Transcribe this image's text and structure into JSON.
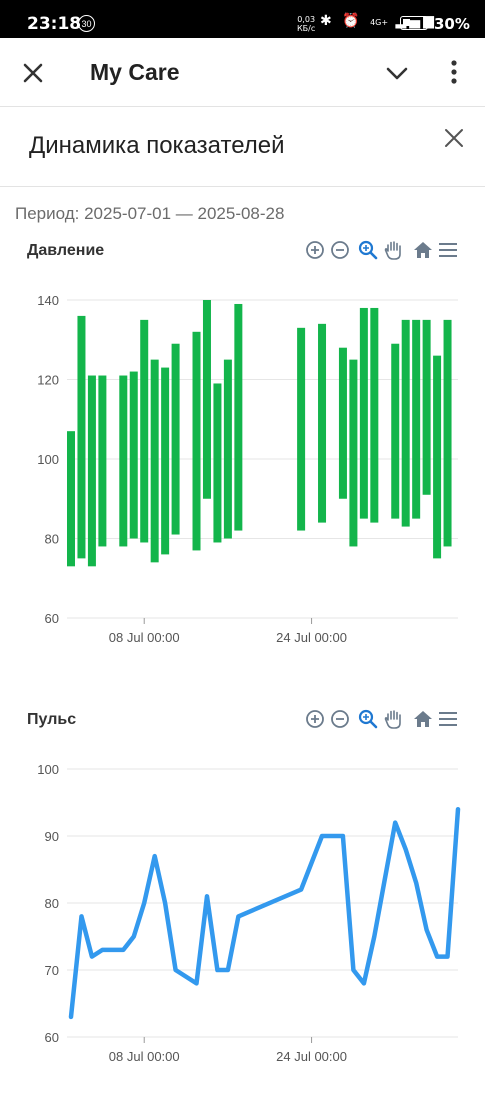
{
  "status_bar": {
    "time": "23:18",
    "badge": "30",
    "net_speed_value": "0,03",
    "net_speed_unit": "КБ/с",
    "network": "4G+",
    "battery": "30%"
  },
  "header": {
    "title": "My Care"
  },
  "section": {
    "title": "Динамика показателей"
  },
  "period": {
    "label": "Период:",
    "range": "2025-07-01 — 2025-08-28"
  },
  "colors": {
    "pressure_bar": "#13b54b",
    "pulse_line": "#3399ee",
    "toolbar_icon": "#6b7b8c",
    "zoom_active": "#1f78d1",
    "grid": "#e6e6e6"
  },
  "toolbar_icons": [
    "zoom-in-icon",
    "zoom-out-icon",
    "selection-zoom-icon",
    "pan-hand-icon",
    "reset-home-icon",
    "menu-icon"
  ],
  "charts": {
    "pressure": {
      "title": "Давление"
    },
    "pulse": {
      "title": "Пульс"
    }
  },
  "chart_data": [
    {
      "type": "bar",
      "subtype": "range",
      "title": "Давление",
      "xaxis_type": "datetime",
      "xlabel": "",
      "ylabel": "",
      "ylim": [
        60,
        140
      ],
      "yticks": [
        60,
        80,
        100,
        120,
        140
      ],
      "xticks": [
        {
          "value": "2025-07-08 00:00",
          "label": "08 Jul 00:00"
        },
        {
          "value": "2025-07-24 00:00",
          "label": "24 Jul 00:00"
        }
      ],
      "grid": true,
      "series": [
        {
          "x": [
            "2025-07-01",
            "2025-07-02",
            "2025-07-03",
            "2025-07-04",
            "2025-07-06",
            "2025-07-07",
            "2025-07-08",
            "2025-07-09",
            "2025-07-10",
            "2025-07-11",
            "2025-07-13",
            "2025-07-14",
            "2025-07-15",
            "2025-07-16",
            "2025-07-17",
            "2025-07-23",
            "2025-07-25",
            "2025-07-27",
            "2025-07-28",
            "2025-07-29",
            "2025-07-30",
            "2025-08-01",
            "2025-08-02",
            "2025-08-03",
            "2025-08-04",
            "2025-08-05",
            "2025-08-06"
          ],
          "low": [
            73,
            75,
            73,
            78,
            78,
            80,
            79,
            74,
            76,
            81,
            77,
            90,
            79,
            80,
            82,
            82,
            84,
            90,
            78,
            85,
            84,
            85,
            83,
            85,
            91,
            75,
            78
          ],
          "high": [
            107,
            136,
            121,
            121,
            121,
            122,
            135,
            125,
            123,
            129,
            132,
            140,
            119,
            125,
            139,
            133,
            134,
            128,
            125,
            138,
            138,
            129,
            135,
            135,
            135,
            126,
            135
          ]
        }
      ]
    },
    {
      "type": "line",
      "title": "Пульс",
      "xaxis_type": "datetime",
      "xlabel": "",
      "ylabel": "",
      "ylim": [
        60,
        100
      ],
      "yticks": [
        60,
        70,
        80,
        90,
        100
      ],
      "xticks": [
        {
          "value": "2025-07-08 00:00",
          "label": "08 Jul 00:00"
        },
        {
          "value": "2025-07-24 00:00",
          "label": "24 Jul 00:00"
        }
      ],
      "grid": true,
      "series": [
        {
          "x": [
            "2025-07-01",
            "2025-07-02",
            "2025-07-03",
            "2025-07-04",
            "2025-07-06",
            "2025-07-07",
            "2025-07-08",
            "2025-07-09",
            "2025-07-10",
            "2025-07-11",
            "2025-07-13",
            "2025-07-14",
            "2025-07-15",
            "2025-07-16",
            "2025-07-17",
            "2025-07-23",
            "2025-07-25",
            "2025-07-27",
            "2025-07-28",
            "2025-07-29",
            "2025-07-30",
            "2025-08-01",
            "2025-08-02",
            "2025-08-03",
            "2025-08-04",
            "2025-08-05",
            "2025-08-06",
            "2025-08-07"
          ],
          "values": [
            63,
            78,
            72,
            73,
            73,
            75,
            80,
            87,
            80,
            70,
            68,
            81,
            70,
            70,
            78,
            82,
            90,
            90,
            70,
            68,
            75,
            92,
            88,
            83,
            76,
            72,
            72,
            94
          ]
        }
      ]
    }
  ]
}
